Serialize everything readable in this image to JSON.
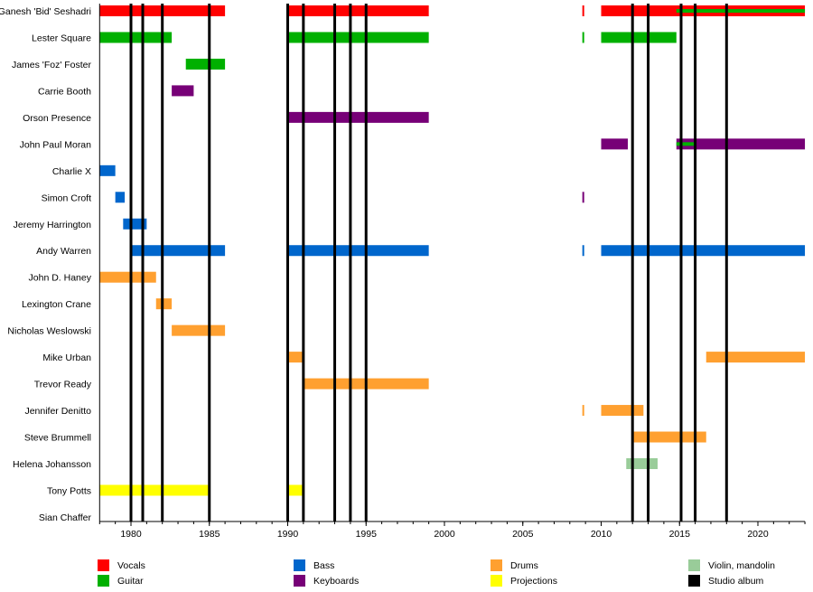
{
  "chart_data": {
    "type": "timeline",
    "xlim": [
      1978,
      2023
    ],
    "x_ticks": [
      1980,
      1985,
      1990,
      1995,
      2000,
      2005,
      2010,
      2015,
      2020
    ],
    "grid": false,
    "legend_placement": "bottom",
    "roles": [
      {
        "name": "Vocals",
        "color": "#ff0000"
      },
      {
        "name": "Bass",
        "color": "#0066cc"
      },
      {
        "name": "Drums",
        "color": "#ffa030"
      },
      {
        "name": "Violin, mandolin",
        "color": "#99cc99"
      },
      {
        "name": "Guitar",
        "color": "#00b000"
      },
      {
        "name": "Keyboards",
        "color": "#770077"
      },
      {
        "name": "Projections",
        "color": "#ffff00"
      },
      {
        "name": "Studio album",
        "color": "#000000"
      }
    ],
    "members": [
      "Ganesh 'Bid' Seshadri",
      "Lester Square",
      "James 'Foz' Foster",
      "Carrie Booth",
      "Orson Presence",
      "John Paul Moran",
      "Charlie X",
      "Simon Croft",
      "Jeremy Harrington",
      "Andy Warren",
      "John D. Haney",
      "Lexington Crane",
      "Nicholas Weslowski",
      "Mike Urban",
      "Trevor Ready",
      "Jennifer Denitto",
      "Steve Brummell",
      "Helena Johansson",
      "Tony Potts",
      "Sian Chaffer"
    ],
    "bars": [
      {
        "member": 0,
        "role": "Vocals",
        "start": 1978,
        "end": 1986
      },
      {
        "member": 0,
        "role": "Vocals",
        "start": 1990,
        "end": 1999
      },
      {
        "member": 0,
        "role": "Vocals",
        "start": 2008.8,
        "end": 2008.9
      },
      {
        "member": 0,
        "role": "Vocals",
        "start": 2010,
        "end": 2023
      },
      {
        "member": 0,
        "role": "Guitar",
        "start": 2014.8,
        "end": 2023,
        "secondary": true
      },
      {
        "member": 1,
        "role": "Guitar",
        "start": 1978,
        "end": 1982.6
      },
      {
        "member": 1,
        "role": "Guitar",
        "start": 1990,
        "end": 1999
      },
      {
        "member": 1,
        "role": "Guitar",
        "start": 2008.8,
        "end": 2008.9
      },
      {
        "member": 1,
        "role": "Guitar",
        "start": 2010,
        "end": 2014.8
      },
      {
        "member": 2,
        "role": "Guitar",
        "start": 1983.5,
        "end": 1986
      },
      {
        "member": 3,
        "role": "Keyboards",
        "start": 1982.6,
        "end": 1984
      },
      {
        "member": 4,
        "role": "Keyboards",
        "start": 1990,
        "end": 1999
      },
      {
        "member": 5,
        "role": "Keyboards",
        "start": 2010,
        "end": 2011.7
      },
      {
        "member": 5,
        "role": "Keyboards",
        "start": 2014.8,
        "end": 2023
      },
      {
        "member": 5,
        "role": "Guitar",
        "start": 2014.8,
        "end": 2016,
        "secondary": true
      },
      {
        "member": 6,
        "role": "Bass",
        "start": 1978,
        "end": 1979
      },
      {
        "member": 7,
        "role": "Bass",
        "start": 1979,
        "end": 1979.6
      },
      {
        "member": 7,
        "role": "Keyboards",
        "start": 2008.8,
        "end": 2008.9
      },
      {
        "member": 8,
        "role": "Bass",
        "start": 1979.5,
        "end": 1981
      },
      {
        "member": 9,
        "role": "Bass",
        "start": 1980,
        "end": 1986
      },
      {
        "member": 9,
        "role": "Bass",
        "start": 1990,
        "end": 1999
      },
      {
        "member": 9,
        "role": "Bass",
        "start": 2008.8,
        "end": 2008.9
      },
      {
        "member": 9,
        "role": "Bass",
        "start": 2010,
        "end": 2023
      },
      {
        "member": 10,
        "role": "Drums",
        "start": 1978,
        "end": 1981.6
      },
      {
        "member": 11,
        "role": "Drums",
        "start": 1981.6,
        "end": 1982.6
      },
      {
        "member": 12,
        "role": "Drums",
        "start": 1982.6,
        "end": 1986
      },
      {
        "member": 13,
        "role": "Drums",
        "start": 1990,
        "end": 1991
      },
      {
        "member": 13,
        "role": "Drums",
        "start": 2016.7,
        "end": 2023
      },
      {
        "member": 14,
        "role": "Drums",
        "start": 1991,
        "end": 1999
      },
      {
        "member": 15,
        "role": "Drums",
        "start": 2008.8,
        "end": 2008.9
      },
      {
        "member": 15,
        "role": "Drums",
        "start": 2010,
        "end": 2012.7
      },
      {
        "member": 16,
        "role": "Drums",
        "start": 2012,
        "end": 2016.7
      },
      {
        "member": 17,
        "role": "Violin, mandolin",
        "start": 2011.6,
        "end": 2013.6
      },
      {
        "member": 18,
        "role": "Projections",
        "start": 1978,
        "end": 1985
      },
      {
        "member": 18,
        "role": "Projections",
        "start": 1990,
        "end": 1991
      }
    ],
    "studio_albums": [
      1980,
      1980.75,
      1982,
      1985,
      1990,
      1991,
      1993,
      1994,
      1995,
      2012,
      2013,
      2015.1,
      2016,
      2018
    ]
  }
}
